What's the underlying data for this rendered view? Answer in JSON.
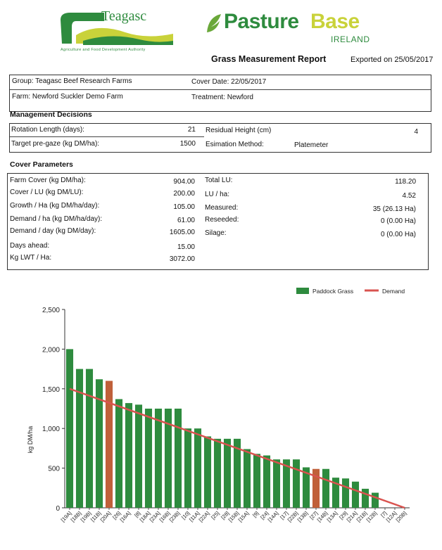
{
  "header": {
    "teagasc_name": "Teagasc",
    "teagasc_tagline": "Agriculture and Food Development Authority",
    "pasturebase_name_a": "Pasture",
    "pasturebase_name_b": "Base",
    "pasturebase_sub": "IRELAND",
    "report_title": "Grass Measurement Report",
    "exported": "Exported on 25/05/2017",
    "brand_green": "#2e8b3e",
    "brand_yellow": "#c9d23a"
  },
  "info": {
    "group": "Group: Teagasc Beef Research Farms",
    "farm": "Farm: Newford Suckler Demo Farm",
    "cover_date": "Cover Date: 22/05/2017",
    "treatment": "Treatment: Newford"
  },
  "management": {
    "heading": "Management Decisions",
    "rotation_label": "Rotation Length (days):",
    "rotation_value": "21",
    "pregaze_label": "Target pre-gaze (kg DM/ha):",
    "pregaze_value": "1500",
    "residual_label": "Residual Height (cm)",
    "residual_value": "4",
    "method_label": "Esimation Method:",
    "method_value": "Platemeter"
  },
  "cover": {
    "heading": "Cover Parameters",
    "left": [
      {
        "label": "Farm Cover (kg DM/ha):",
        "value": "904.00"
      },
      {
        "label": "Cover / LU (kg DM/LU):",
        "value": "200.00"
      },
      {
        "label": "Growth / Ha (kg DM/ha/day):",
        "value": "105.00"
      },
      {
        "label": "Demand / ha (kg DM/ha/day):",
        "value": "61.00"
      },
      {
        "label": "Demand / day (kg DM/day):",
        "value": "1605.00"
      },
      {
        "label": "Days ahead:",
        "value": "15.00"
      },
      {
        "label": "Kg LWT / Ha:",
        "value": "3072.00"
      }
    ],
    "right": [
      {
        "label": "Total LU:",
        "value": "118.20"
      },
      {
        "label": "LU / ha:",
        "value": "4.52"
      },
      {
        "label": "Measured:",
        "value": "35 (26.13 Ha)"
      },
      {
        "label": "Reseeded:",
        "value": "0 (0.00 Ha)"
      },
      {
        "label": "Silage:",
        "value": "0 (0.00 Ha)"
      }
    ]
  },
  "chart_data": {
    "type": "bar",
    "ylabel": "kg DM/ha",
    "ylim": [
      0,
      2500
    ],
    "yticks": [
      "0",
      "500",
      "1,000",
      "1,500",
      "2,000",
      "2,500"
    ],
    "legend": {
      "bars": "Paddock Grass",
      "line": "Demand",
      "position": "top-right"
    },
    "colors": {
      "bar": "#2e8b3e",
      "highlight": "#c0603a",
      "line": "#d9534f"
    },
    "categories": [
      "[19A]",
      "[18B]",
      "[19B]",
      "[11B]",
      "[20A]",
      "[26]",
      "[16A]",
      "[8]",
      "[18A]",
      "[23A]",
      "[16B]",
      "[23B]",
      "[10]",
      "[11A]",
      "[22A]",
      "[25]",
      "[28]",
      "[15B]",
      "[15A]",
      "[9]",
      "[24]",
      "[14A]",
      "[17]",
      "[22B]",
      "[13B]",
      "[27]",
      "[14B]",
      "[13A]",
      "[29]",
      "[21A]",
      "[21B]",
      "[12B]",
      "[7]",
      "[12A]",
      "[20B]"
    ],
    "values": [
      2000,
      1750,
      1750,
      1620,
      1600,
      1370,
      1320,
      1300,
      1250,
      1250,
      1250,
      1250,
      1000,
      1000,
      900,
      870,
      870,
      870,
      740,
      680,
      660,
      610,
      610,
      610,
      510,
      490,
      490,
      380,
      370,
      330,
      240,
      190,
      0,
      0,
      0
    ],
    "highlighted": [
      "[20A]",
      "[27]"
    ],
    "demand_line": {
      "start": 1500,
      "end": 0
    }
  }
}
